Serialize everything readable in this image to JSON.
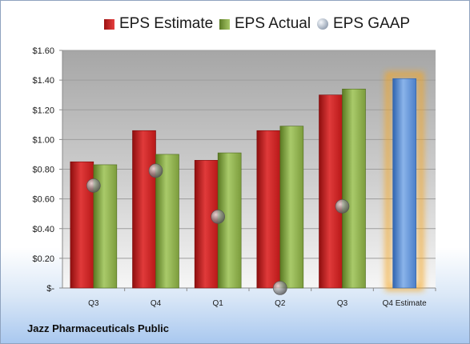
{
  "company": "Jazz Pharmaceuticals Public",
  "legend": {
    "estimate": "EPS Estimate",
    "actual": "EPS Actual",
    "gaap": "EPS GAAP"
  },
  "colors": {
    "estimate": "#d42424",
    "actual": "#8cb04a",
    "gaap": "#9aa6b6",
    "forecast": "#5d92d6",
    "forecast_glow": "#f5a623"
  },
  "chart_data": {
    "type": "bar",
    "categories": [
      "Q3",
      "Q4",
      "Q1",
      "Q2",
      "Q3",
      "Q4 Estimate"
    ],
    "series": [
      {
        "name": "EPS Estimate",
        "values": [
          0.85,
          1.06,
          0.86,
          1.06,
          1.3,
          1.41
        ]
      },
      {
        "name": "EPS Actual",
        "values": [
          0.83,
          0.9,
          0.91,
          1.09,
          1.34,
          null
        ]
      },
      {
        "name": "EPS GAAP",
        "values": [
          0.69,
          0.79,
          0.48,
          0.0,
          0.55,
          null
        ]
      }
    ],
    "y_ticks": [
      "$-",
      "$0.20",
      "$0.40",
      "$0.60",
      "$0.80",
      "$1.00",
      "$1.20",
      "$1.40",
      "$1.60"
    ],
    "ylim": [
      0,
      1.6
    ],
    "grid": true,
    "legend_position": "top"
  }
}
